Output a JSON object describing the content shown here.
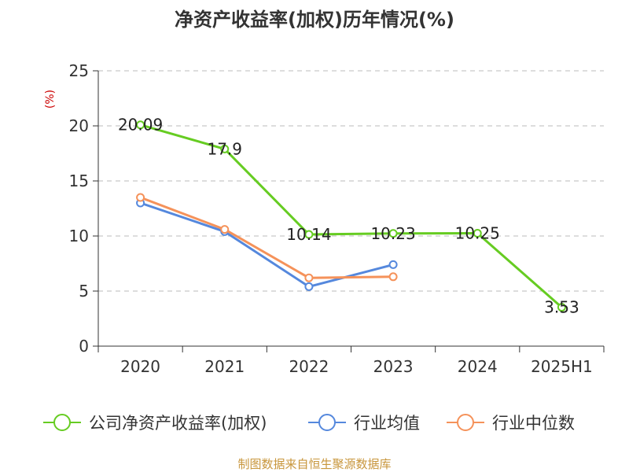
{
  "chart_data": {
    "type": "line",
    "title": "净资产收益率(加权)历年情况(%)",
    "y_unit": "(%)",
    "categories": [
      "2020",
      "2021",
      "2022",
      "2023",
      "2024",
      "2025H1"
    ],
    "ylim": [
      0,
      25
    ],
    "yticks": [
      0,
      5,
      10,
      15,
      20,
      25
    ],
    "grid": true,
    "legend_position": "bottom",
    "series": [
      {
        "name": "公司净资产收益率(加权)",
        "color": "#66cc22",
        "values": [
          20.09,
          17.9,
          10.14,
          10.23,
          10.25,
          3.53
        ],
        "labels": [
          "20.09",
          "17.9",
          "10.14",
          "10.23",
          "10.25",
          "3.53"
        ]
      },
      {
        "name": "行业均值",
        "color": "#5588dd",
        "values": [
          13.0,
          10.4,
          5.4,
          7.4,
          null,
          null
        ]
      },
      {
        "name": "行业中位数",
        "color": "#f5925a",
        "values": [
          13.5,
          10.6,
          6.2,
          6.3,
          null,
          null
        ]
      }
    ]
  },
  "source": "制图数据来自恒生聚源数据库"
}
